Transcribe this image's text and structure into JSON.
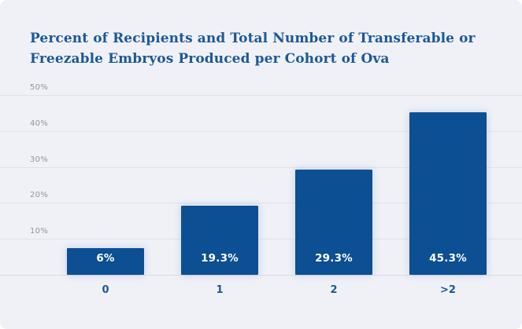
{
  "card": {
    "title": "Percent of Recipients and Total Number of Transferable or Freezable Embryos Produced per Cohort of Ova"
  },
  "chart_data": {
    "type": "bar",
    "title": "Percent of Recipients and Total Number of Transferable or Freezable Embryos Produced per Cohort of Ova",
    "categories": [
      "0",
      "1",
      "2",
      ">2"
    ],
    "values": [
      6,
      19.3,
      29.3,
      45.3
    ],
    "bar_labels": [
      "6%",
      "19.3%",
      "29.3%",
      "45.3%"
    ],
    "xlabel": "",
    "ylabel": "",
    "ylim": [
      0,
      50
    ],
    "y_ticks": [
      10,
      20,
      30,
      40,
      50
    ],
    "y_tick_labels": [
      "10%",
      "20%",
      "30%",
      "40%",
      "50%"
    ],
    "grid": true,
    "legend": false,
    "colors": {
      "card_background": "#f0f1f6",
      "page_background": "#ffffff",
      "bar_fill": "#0c4f93",
      "bar_label_text": "#ffffff",
      "title_text": "#1b5899",
      "x_label_text": "#1b5899",
      "y_tick_text": "#9195a1",
      "gridline": "#dfe1ec",
      "axis_line": "#d9dce8"
    }
  }
}
